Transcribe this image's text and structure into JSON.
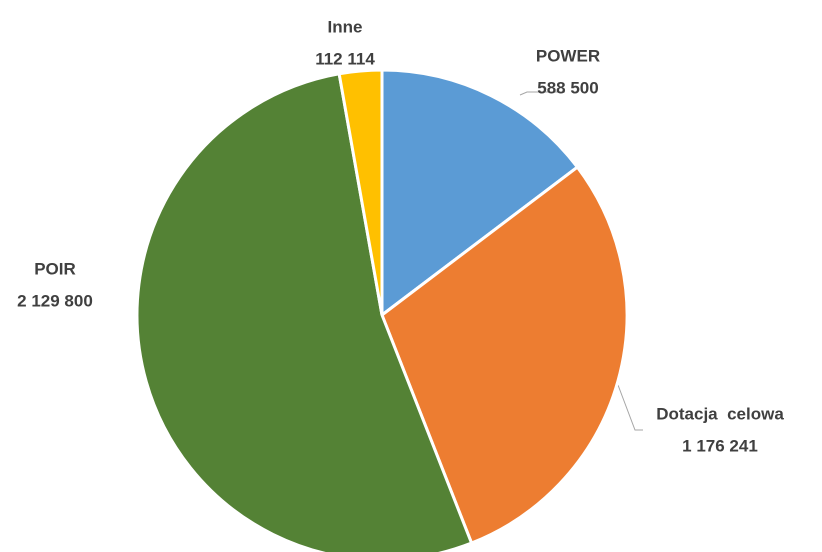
{
  "chart_data": {
    "type": "pie",
    "categories": [
      "POWER",
      "Dotacja  celowa",
      "POIR",
      "Inne"
    ],
    "values": [
      588500,
      1176241,
      2129800,
      112114
    ],
    "value_labels": [
      "588 500",
      "1 176 241",
      "2 129 800",
      "112 114"
    ],
    "colors": [
      "#5b9bd5",
      "#ed7d31",
      "#548235",
      "#ffc000"
    ]
  }
}
